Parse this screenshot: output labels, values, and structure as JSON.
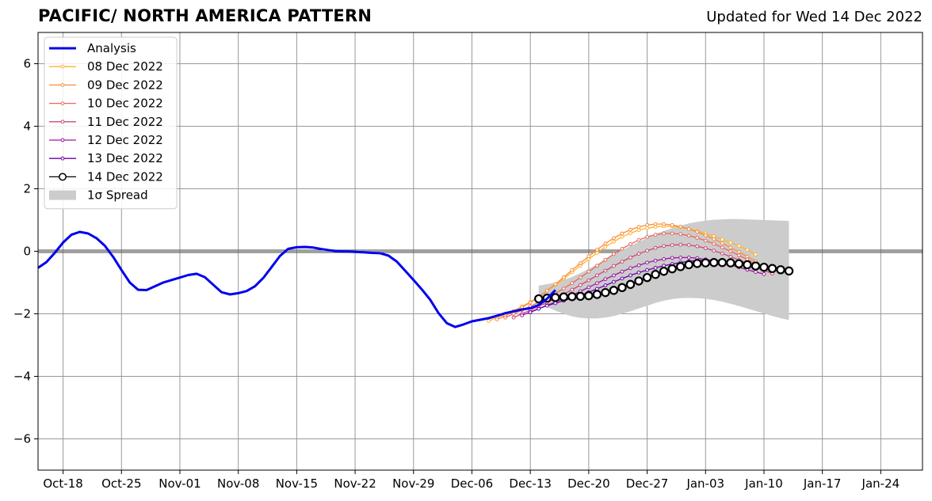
{
  "chart_data": {
    "type": "line",
    "title": "PACIFIC/ NORTH AMERICA PATTERN",
    "subtitle": "Updated for Wed 14 Dec 2022",
    "xlabel": "",
    "ylabel": "",
    "xlim": [
      "2022-10-15",
      "2023-01-29"
    ],
    "ylim": [
      -7,
      7
    ],
    "x_ticks": [
      "2022-10-18",
      "2022-10-25",
      "2022-11-01",
      "2022-11-08",
      "2022-11-15",
      "2022-11-22",
      "2022-11-29",
      "2022-12-06",
      "2022-12-13",
      "2022-12-20",
      "2022-12-27",
      "2023-01-03",
      "2023-01-10",
      "2023-01-17",
      "2023-01-24"
    ],
    "x_tick_labels": [
      "Oct-18",
      "Oct-25",
      "Nov-01",
      "Nov-08",
      "Nov-15",
      "Nov-22",
      "Nov-29",
      "Dec-06",
      "Dec-13",
      "Dec-20",
      "Dec-27",
      "Jan-03",
      "Jan-10",
      "Jan-17",
      "Jan-24"
    ],
    "y_ticks": [
      -6,
      -4,
      -2,
      0,
      2,
      4,
      6
    ],
    "y_tick_labels": [
      "−6",
      "−4",
      "−2",
      "0",
      "2",
      "4",
      "6"
    ],
    "grid": true,
    "legend_position": "top-left",
    "analysis": {
      "name": "Analysis",
      "color": "#0000ee",
      "start": "2022-10-15",
      "values": [
        -0.53,
        -0.35,
        -0.05,
        0.28,
        0.53,
        0.62,
        0.57,
        0.42,
        0.18,
        -0.18,
        -0.6,
        -1.0,
        -1.23,
        -1.24,
        -1.12,
        -1.0,
        -0.92,
        -0.84,
        -0.76,
        -0.72,
        -0.83,
        -1.07,
        -1.31,
        -1.38,
        -1.34,
        -1.27,
        -1.12,
        -0.85,
        -0.5,
        -0.15,
        0.08,
        0.13,
        0.14,
        0.12,
        0.07,
        0.03,
        0.0,
        -0.01,
        -0.02,
        -0.03,
        -0.05,
        -0.06,
        -0.14,
        -0.33,
        -0.62,
        -0.92,
        -1.22,
        -1.55,
        -1.98,
        -2.3,
        -2.42,
        -2.34,
        -2.24,
        -2.19,
        -2.14,
        -2.06,
        -1.98,
        -1.92,
        -1.86,
        -1.82,
        -1.72,
        -1.52,
        -1.24
      ]
    },
    "series": [
      {
        "name": "08 Dec 2022",
        "color": "#fdb42f",
        "start": "2022-12-08",
        "values": [
          -2.23,
          -2.12,
          -2.02,
          -1.91,
          -1.76,
          -1.62,
          -1.45,
          -1.27,
          -1.08,
          -0.88,
          -0.67,
          -0.46,
          -0.25,
          -0.05,
          0.14,
          0.31,
          0.46,
          0.58,
          0.68,
          0.74,
          0.78,
          0.8,
          0.8,
          0.77,
          0.72,
          0.65,
          0.57,
          0.48,
          0.38,
          0.28,
          0.17,
          0.05,
          -0.1
        ]
      },
      {
        "name": "09 Dec 2022",
        "color": "#f78d3e",
        "start": "2022-12-09",
        "values": [
          -2.18,
          -2.06,
          -1.94,
          -1.8,
          -1.64,
          -1.46,
          -1.26,
          -1.05,
          -0.83,
          -0.6,
          -0.38,
          -0.16,
          0.05,
          0.25,
          0.42,
          0.57,
          0.69,
          0.78,
          0.84,
          0.87,
          0.87,
          0.84,
          0.79,
          0.71,
          0.62,
          0.51,
          0.39,
          0.26,
          0.12,
          -0.02,
          -0.17,
          -0.32
        ]
      },
      {
        "name": "10 Dec 2022",
        "color": "#e56b5d",
        "start": "2022-12-10",
        "values": [
          -2.12,
          -2.0,
          -1.88,
          -1.76,
          -1.63,
          -1.49,
          -1.35,
          -1.19,
          -1.02,
          -0.84,
          -0.65,
          -0.46,
          -0.27,
          -0.09,
          0.08,
          0.23,
          0.36,
          0.46,
          0.53,
          0.57,
          0.57,
          0.55,
          0.5,
          0.43,
          0.34,
          0.24,
          0.12,
          0.0,
          -0.13,
          -0.26,
          -0.39
        ]
      },
      {
        "name": "11 Dec 2022",
        "color": "#cc4778",
        "start": "2022-12-11",
        "values": [
          -2.12,
          -2.0,
          -1.88,
          -1.76,
          -1.64,
          -1.51,
          -1.37,
          -1.23,
          -1.08,
          -0.93,
          -0.77,
          -0.62,
          -0.47,
          -0.33,
          -0.2,
          -0.08,
          0.02,
          0.11,
          0.17,
          0.2,
          0.21,
          0.2,
          0.16,
          0.1,
          0.02,
          -0.07,
          -0.17,
          -0.28,
          -0.39,
          -0.5,
          -0.61,
          -0.71
        ]
      },
      {
        "name": "12 Dec 2022",
        "color": "#9c179e",
        "start": "2022-12-12",
        "values": [
          -2.05,
          -1.94,
          -1.83,
          -1.73,
          -1.62,
          -1.51,
          -1.4,
          -1.28,
          -1.15,
          -1.02,
          -0.89,
          -0.77,
          -0.65,
          -0.54,
          -0.45,
          -0.36,
          -0.3,
          -0.25,
          -0.21,
          -0.2,
          -0.2,
          -0.22,
          -0.26,
          -0.31,
          -0.37,
          -0.44,
          -0.51,
          -0.59,
          -0.66,
          -0.73
        ]
      },
      {
        "name": "13 Dec 2022",
        "color": "#6a00a8",
        "start": "2022-12-13",
        "values": [
          -1.95,
          -1.84,
          -1.74,
          -1.66,
          -1.58,
          -1.5,
          -1.41,
          -1.31,
          -1.2,
          -1.09,
          -0.98,
          -0.87,
          -0.77,
          -0.68,
          -0.6,
          -0.53,
          -0.46,
          -0.41,
          -0.36,
          -0.32,
          -0.29,
          -0.28,
          -0.28,
          -0.3,
          -0.33,
          -0.37,
          -0.41,
          -0.46,
          -0.51,
          -0.56,
          -0.61
        ]
      },
      {
        "name": "14 Dec 2022",
        "color": "#000000",
        "start": "2022-12-14",
        "values": [
          -1.52,
          -1.5,
          -1.48,
          -1.46,
          -1.45,
          -1.44,
          -1.42,
          -1.38,
          -1.32,
          -1.25,
          -1.16,
          -1.06,
          -0.95,
          -0.84,
          -0.74,
          -0.64,
          -0.56,
          -0.49,
          -0.43,
          -0.39,
          -0.37,
          -0.36,
          -0.36,
          -0.37,
          -0.4,
          -0.43,
          -0.47,
          -0.51,
          -0.55,
          -0.59,
          -0.63
        ]
      }
    ],
    "spread": {
      "name": "1σ Spread",
      "color": "#cccccc",
      "start": "2022-12-14",
      "upper": [
        -1.1,
        -1.05,
        -1.0,
        -0.92,
        -0.82,
        -0.7,
        -0.56,
        -0.42,
        -0.27,
        -0.12,
        0.03,
        0.17,
        0.3,
        0.43,
        0.55,
        0.65,
        0.74,
        0.82,
        0.89,
        0.94,
        0.98,
        1.01,
        1.02,
        1.03,
        1.03,
        1.02,
        1.01,
        1.0,
        0.99,
        0.98,
        0.97
      ],
      "lower": [
        -1.65,
        -1.78,
        -1.9,
        -2.0,
        -2.08,
        -2.13,
        -2.15,
        -2.15,
        -2.12,
        -2.07,
        -2.0,
        -1.92,
        -1.83,
        -1.74,
        -1.65,
        -1.58,
        -1.53,
        -1.5,
        -1.49,
        -1.5,
        -1.52,
        -1.56,
        -1.61,
        -1.68,
        -1.75,
        -1.83,
        -1.91,
        -1.99,
        -2.07,
        -2.14,
        -2.2
      ]
    }
  }
}
